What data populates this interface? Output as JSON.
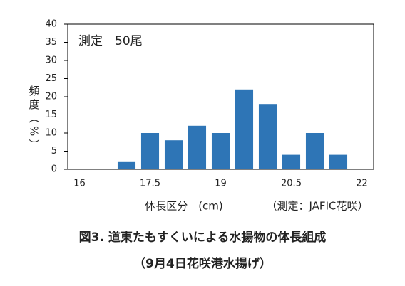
{
  "chart_data": {
    "type": "bar",
    "annotation": "測定　50尾",
    "ylabel": "頻度（%）",
    "xlabel": "体長区分　(cm)",
    "source": "（測定：JAFIC花咲）",
    "caption": [
      "図3. 道東たもすくいによる水揚物の体長組成",
      "（9月4日花咲港水揚げ）"
    ],
    "categories": [
      "16",
      null,
      null,
      "17.5",
      null,
      null,
      "19",
      null,
      null,
      "20.5",
      null,
      null,
      "22"
    ],
    "values": [
      0,
      0,
      2,
      10,
      8,
      12,
      10,
      22,
      18,
      4,
      10,
      4,
      0
    ],
    "color": "#2e75b6",
    "ylim": [
      0,
      40
    ],
    "yticks": [
      0,
      5,
      10,
      15,
      20,
      25,
      30,
      35,
      40
    ],
    "grid": false
  }
}
